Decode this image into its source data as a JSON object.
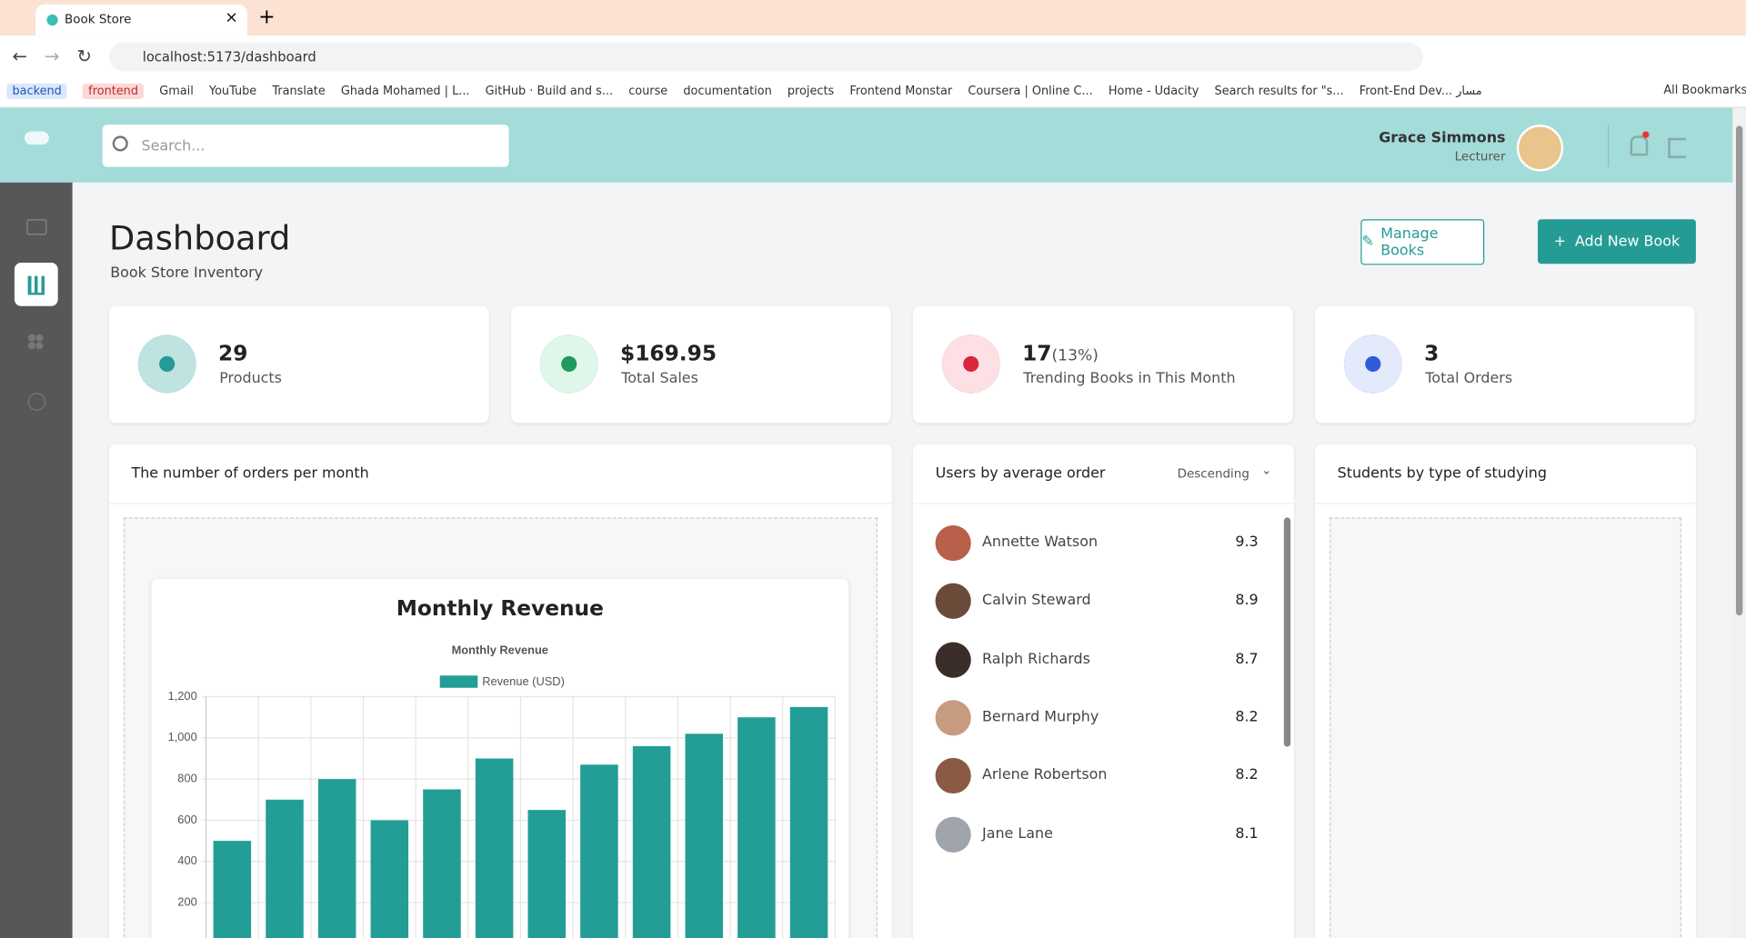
{
  "browser": {
    "tab_title": "Book Store",
    "url": "localhost:5173/dashboard",
    "bookmarks": [
      "backend",
      "frontend",
      "Gmail",
      "YouTube",
      "Translate",
      "Ghada Mohamed | L...",
      "GitHub · Build and s...",
      "course",
      "documentation",
      "projects",
      "Frontend Monstar",
      "Coursera | Online C...",
      "Home - Udacity",
      "Search results for \"s...",
      "Front-End Dev... مسار"
    ],
    "all_bookmarks": "All Bookmarks"
  },
  "header": {
    "search_placeholder": "Search...",
    "user_name": "Grace Simmons",
    "user_role": "Lecturer"
  },
  "page": {
    "title": "Dashboard",
    "subtitle": "Book Store Inventory",
    "manage_button": "Manage Books",
    "add_button": "Add New Book"
  },
  "stats": [
    {
      "value": "29",
      "label": "Products"
    },
    {
      "value": "$169.95",
      "label": "Total Sales"
    },
    {
      "value": "17",
      "extra": "(13%)",
      "label": "Trending Books in This Month"
    },
    {
      "value": "3",
      "label": "Total Orders"
    }
  ],
  "orders_panel": {
    "title": "The number of orders per month",
    "chart_heading": "Monthly Revenue"
  },
  "users_panel": {
    "title": "Users by average order",
    "sort": "Descending",
    "users": [
      {
        "name": "Annette Watson",
        "score": 9.3
      },
      {
        "name": "Calvin Steward",
        "score": 8.9
      },
      {
        "name": "Ralph Richards",
        "score": 8.7
      },
      {
        "name": "Bernard Murphy",
        "score": 8.2
      },
      {
        "name": "Arlene Robertson",
        "score": 8.2
      },
      {
        "name": "Jane Lane",
        "score": 8.1
      }
    ]
  },
  "students_panel": {
    "title": "Students by type of studying"
  },
  "chart_data": {
    "type": "bar",
    "title": "Monthly Revenue",
    "categories": [
      null,
      null,
      null,
      null,
      null,
      null,
      null,
      null,
      null,
      null,
      null,
      null
    ],
    "series": [
      {
        "name": "Revenue (USD)",
        "color": "#229e96",
        "values": [
          500,
          700,
          800,
          600,
          750,
          900,
          650,
          870,
          960,
          1020,
          1100,
          1150
        ]
      }
    ],
    "ylim": [
      0,
      1200
    ],
    "yticks": [
      200,
      400,
      600,
      800,
      {
        "value": 1000,
        "label": "1,000"
      },
      {
        "value": 1200,
        "label": "1,200"
      }
    ],
    "grid": true,
    "legend": "top"
  }
}
